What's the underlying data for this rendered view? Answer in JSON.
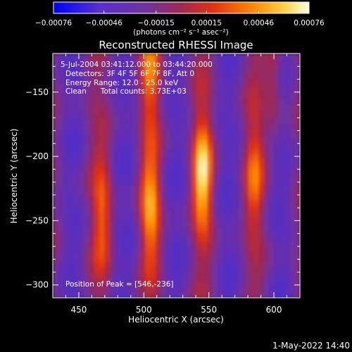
{
  "chart_data": {
    "type": "heatmap",
    "title": "Reconstructed RHESSI Image",
    "xlabel": "Heliocentric X (arcsec)",
    "ylabel": "Heliocentric Y (arcsec)",
    "xlim": [
      430,
      620
    ],
    "ylim": [
      -310,
      -120
    ],
    "x_ticks": [
      450,
      500,
      550,
      600
    ],
    "y_ticks": [
      -300,
      -250,
      -200,
      -150
    ],
    "x_tick_labels": [
      "450",
      "500",
      "550",
      "600"
    ],
    "y_tick_labels": [
      "−300",
      "−250",
      "−200",
      "−150"
    ],
    "colorbar": {
      "min": -0.00076,
      "max": 0.00076,
      "ticks": [
        -0.00076,
        -0.00046,
        -0.00015,
        0.00015,
        0.00046,
        0.00076
      ],
      "tick_labels": [
        "−0.00076",
        "−0.00046",
        "−0.00015",
        "0.00015",
        "0.00046",
        "0.00076"
      ],
      "unit_label": "(photons cm⁻² s⁻¹ asec⁻²)"
    },
    "annotations": [
      "5-Jul-2004 03:41:12.000 to 03:44:20.000",
      "Detectors: 3F 4F 5F 6F 7F 8F, Att 0",
      "Energy Range: 12.0 - 25.0 keV",
      "Clean      Total counts: 3.73E+03"
    ],
    "peak_label": "Position of Peak = [546,-236]",
    "peak": [
      546,
      -236
    ],
    "bright_stripes": [
      {
        "x": 545,
        "y_center": -215,
        "peak_value": 0.00076
      },
      {
        "x": 505,
        "y_center": -240,
        "peak_value": 0.0006
      },
      {
        "x": 468,
        "y_center": -245,
        "peak_value": 0.0004
      },
      {
        "x": 585,
        "y_center": -215,
        "peak_value": 0.0004
      },
      {
        "x": 505,
        "y_center": -135,
        "peak_value": 0.00045
      },
      {
        "x": 600,
        "y_center": -140,
        "peak_value": 0.00035
      }
    ]
  },
  "footer": {
    "timestamp": "1-May-2022 14:40"
  }
}
